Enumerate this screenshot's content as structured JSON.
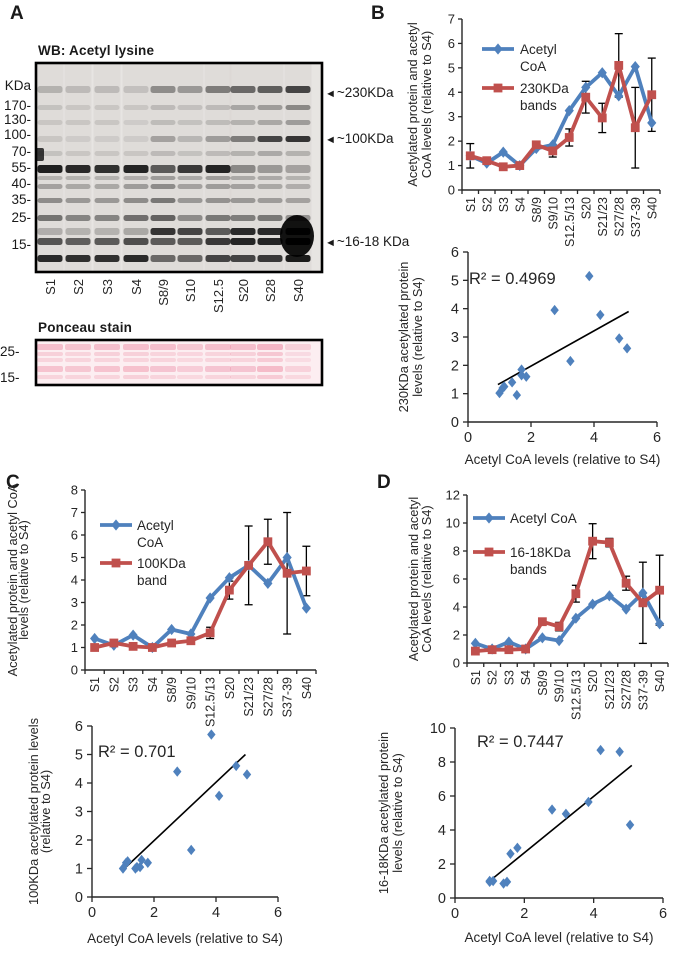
{
  "figure": {
    "panel_labels": {
      "a": "A",
      "b": "B",
      "c": "C",
      "d": "D"
    }
  },
  "colors": {
    "acetyl_coa_blue": "#4F81BD",
    "band_red": "#C0504D",
    "axis_gray": "#262626",
    "error_black": "#000000",
    "trend_black": "#000000",
    "blot_band_black": "#0a0a0a",
    "blot_bg_gray": "#e7e5e2",
    "ponceau_pink": "#EF97AD",
    "ponceau_bg": "#FCEEF1"
  },
  "panel_a": {
    "wb_title": "WB: Acetyl lysine",
    "ladder": [
      "KDa",
      "170-",
      "130-",
      "100-",
      "70-",
      "55-",
      "40-",
      "35-",
      "25-",
      "15-"
    ],
    "lanes": [
      "S1",
      "S2",
      "S3",
      "S4",
      "S8/9",
      "S10",
      "S12.5",
      "S20",
      "S28",
      "S40"
    ],
    "annotations": [
      "~230KDa",
      "~100KDa",
      "~16-18 KDa"
    ],
    "ponceau_title": "Ponceau stain",
    "ponceau_markers": [
      "25-",
      "15-"
    ],
    "blot_bands": [
      {
        "kda": "230",
        "y": 24,
        "h": 7,
        "intensities": [
          0.2,
          0.16,
          0.16,
          0.13,
          0.38,
          0.32,
          0.46,
          0.55,
          0.6,
          0.72
        ]
      },
      {
        "kda": "170",
        "y": 43,
        "h": 5,
        "intensities": [
          0.12,
          0.1,
          0.1,
          0.1,
          0.16,
          0.13,
          0.16,
          0.26,
          0.3,
          0.4
        ]
      },
      {
        "kda": "130",
        "y": 58,
        "h": 5,
        "intensities": [
          0.1,
          0.1,
          0.1,
          0.08,
          0.15,
          0.12,
          0.15,
          0.2,
          0.25,
          0.3
        ]
      },
      {
        "kda": "100",
        "y": 74,
        "h": 6,
        "intensities": [
          0.1,
          0.08,
          0.08,
          0.08,
          0.28,
          0.18,
          0.3,
          0.46,
          0.72,
          0.8
        ]
      },
      {
        "kda": "70",
        "y": 89,
        "h": 5,
        "intensities": [
          0.12,
          0.1,
          0.1,
          0.1,
          0.16,
          0.12,
          0.16,
          0.2,
          0.24,
          0.2
        ]
      },
      {
        "kda": "55",
        "y": 103,
        "h": 8,
        "intensities": [
          0.9,
          0.86,
          0.82,
          0.88,
          0.62,
          0.78,
          0.88,
          0.4,
          0.32,
          0.28
        ]
      },
      {
        "kda": "48",
        "y": 114,
        "h": 4,
        "intensities": [
          0.2,
          0.2,
          0.2,
          0.22,
          0.3,
          0.24,
          0.3,
          0.24,
          0.24,
          0.2
        ]
      },
      {
        "kda": "40",
        "y": 122,
        "h": 5,
        "intensities": [
          0.28,
          0.25,
          0.25,
          0.3,
          0.38,
          0.28,
          0.3,
          0.28,
          0.25,
          0.22
        ]
      },
      {
        "kda": "35",
        "y": 136,
        "h": 5,
        "intensities": [
          0.38,
          0.32,
          0.32,
          0.38,
          0.48,
          0.32,
          0.35,
          0.32,
          0.3,
          0.28
        ]
      },
      {
        "kda": "25",
        "y": 153,
        "h": 6,
        "intensities": [
          0.5,
          0.42,
          0.42,
          0.52,
          0.58,
          0.38,
          0.48,
          0.45,
          0.48,
          0.35
        ]
      },
      {
        "kda": "18",
        "y": 166,
        "h": 7,
        "intensities": [
          0.22,
          0.2,
          0.2,
          0.25,
          0.8,
          0.72,
          0.62,
          0.85,
          0.85,
          0.95
        ]
      },
      {
        "kda": "16",
        "y": 176,
        "h": 7,
        "intensities": [
          0.65,
          0.6,
          0.62,
          0.68,
          0.62,
          0.62,
          0.78,
          0.88,
          0.88,
          1.0
        ]
      },
      {
        "kda": "13",
        "y": 193,
        "h": 7,
        "intensities": [
          0.85,
          0.82,
          0.82,
          0.85,
          0.55,
          0.55,
          0.72,
          0.72,
          0.78,
          0.92
        ]
      }
    ],
    "ponceau_bands": [
      {
        "y": 5,
        "h": 6,
        "intensities": [
          0.55,
          0.5,
          0.55,
          0.55,
          0.55,
          0.45,
          0.55,
          0.55,
          0.65,
          0.35
        ]
      },
      {
        "y": 13,
        "h": 4,
        "intensities": [
          0.35,
          0.3,
          0.35,
          0.35,
          0.3,
          0.28,
          0.3,
          0.35,
          0.45,
          0.22
        ]
      },
      {
        "y": 19,
        "h": 4,
        "intensities": [
          0.3,
          0.3,
          0.3,
          0.3,
          0.3,
          0.25,
          0.3,
          0.3,
          0.4,
          0.2
        ]
      },
      {
        "y": 27,
        "h": 6,
        "intensities": [
          0.5,
          0.45,
          0.5,
          0.52,
          0.48,
          0.38,
          0.48,
          0.48,
          0.58,
          0.32
        ]
      },
      {
        "y": 36,
        "h": 4,
        "intensities": [
          0.3,
          0.3,
          0.3,
          0.35,
          0.3,
          0.25,
          0.3,
          0.3,
          0.4,
          0.25
        ]
      }
    ]
  },
  "chart_data": [
    {
      "id": "panel_b_line",
      "type": "line",
      "categories": [
        "S1",
        "S2",
        "S3",
        "S4",
        "S8/9",
        "S9/10",
        "S12.5/13",
        "S20",
        "S21/23",
        "S27/28",
        "S37-39",
        "S40"
      ],
      "ylabel_lines": [
        "Acetylated protein and acetyl",
        "CoA levels (relative to S4)"
      ],
      "ylim": [
        0,
        7
      ],
      "ytick_step": 1,
      "grid": false,
      "legend_position": "top-left-inside",
      "series": [
        {
          "name": "Acetyl CoA",
          "name_lines": [
            "Acetyl",
            "CoA"
          ],
          "color_key": "acetyl_coa_blue",
          "marker": "diamond",
          "values": [
            1.4,
            1.1,
            1.55,
            1.0,
            1.7,
            1.85,
            3.25,
            4.2,
            4.8,
            3.85,
            5.05,
            2.75
          ]
        },
        {
          "name": "230KDa bands",
          "name_lines": [
            "230KDa",
            "bands"
          ],
          "color_key": "band_red",
          "marker": "square",
          "values": [
            1.4,
            1.2,
            0.95,
            1.0,
            1.85,
            1.6,
            2.15,
            3.8,
            2.95,
            5.1,
            2.55,
            3.9
          ],
          "errors": [
            0.5,
            0,
            0,
            0,
            0,
            0.25,
            0.35,
            0.65,
            0.6,
            1.3,
            1.65,
            1.5
          ]
        }
      ]
    },
    {
      "id": "panel_b_scatter",
      "type": "scatter",
      "r2_label": "R² = 0.4969",
      "xlabel": "Acetyl CoA levels (relative to S4)",
      "ylabel_lines": [
        "230KDa acetylated  protein",
        "levels (relative to S4)"
      ],
      "xlim": [
        0,
        6
      ],
      "ylim": [
        0,
        6
      ],
      "xticks": [
        0,
        2,
        4,
        6
      ],
      "yticks": [
        0,
        1,
        2,
        3,
        4,
        5,
        6
      ],
      "points": [
        [
          1.4,
          1.4
        ],
        [
          1.1,
          1.2
        ],
        [
          1.15,
          1.25
        ],
        [
          1.55,
          0.95
        ],
        [
          1.0,
          1.02
        ],
        [
          1.7,
          1.85
        ],
        [
          1.85,
          1.6
        ],
        [
          1.7,
          1.65
        ],
        [
          3.25,
          2.15
        ],
        [
          4.2,
          3.78
        ],
        [
          4.8,
          2.95
        ],
        [
          3.85,
          5.15
        ],
        [
          5.05,
          2.6
        ],
        [
          2.75,
          3.95
        ]
      ],
      "trend": [
        [
          0.95,
          1.32
        ],
        [
          5.1,
          3.9
        ]
      ]
    },
    {
      "id": "panel_c_line",
      "type": "line",
      "categories": [
        "S1",
        "S2",
        "S3",
        "S4",
        "S8/9",
        "S9/10",
        "S12.5/13",
        "S20",
        "S21/23",
        "S27/28",
        "S37-39",
        "S40"
      ],
      "ylabel_lines": [
        "Acetylated protein and acetyl CoA",
        "levels (relative to S4)"
      ],
      "ylim": [
        0,
        8
      ],
      "ytick_step": 1,
      "grid": false,
      "legend_position": "top-left-inside",
      "series": [
        {
          "name": "Acetyl CoA",
          "name_lines": [
            "Acetyl",
            "CoA"
          ],
          "color_key": "acetyl_coa_blue",
          "marker": "diamond",
          "values": [
            1.4,
            1.1,
            1.55,
            1.0,
            1.8,
            1.6,
            3.2,
            4.1,
            4.65,
            3.85,
            5.0,
            2.75
          ]
        },
        {
          "name": "100KDa band",
          "name_lines": [
            "100KDa",
            "band"
          ],
          "color_key": "band_red",
          "marker": "square",
          "values": [
            1.0,
            1.2,
            1.05,
            1.0,
            1.2,
            1.3,
            1.65,
            3.55,
            4.65,
            5.7,
            4.3,
            4.4
          ],
          "errors": [
            0,
            0,
            0,
            0,
            0,
            0,
            0.25,
            0.4,
            1.75,
            1.0,
            2.7,
            1.1
          ]
        }
      ]
    },
    {
      "id": "panel_c_scatter",
      "type": "scatter",
      "r2_label": "R² = 0.701",
      "xlabel": "Acetyl CoA levels (relative to S4)",
      "ylabel_lines": [
        "100KDa acetylated protein levels",
        "(relative to S4)"
      ],
      "xlim": [
        0,
        6
      ],
      "ylim": [
        0,
        6
      ],
      "xticks": [
        0,
        2,
        4,
        6
      ],
      "yticks": [
        0,
        1,
        2,
        3,
        4,
        5,
        6
      ],
      "points": [
        [
          1.4,
          1.0
        ],
        [
          1.1,
          1.2
        ],
        [
          1.15,
          1.25
        ],
        [
          1.55,
          1.05
        ],
        [
          1.0,
          1.0
        ],
        [
          1.8,
          1.2
        ],
        [
          1.6,
          1.3
        ],
        [
          1.45,
          1.05
        ],
        [
          3.2,
          1.65
        ],
        [
          4.1,
          3.55
        ],
        [
          4.65,
          4.6
        ],
        [
          3.85,
          5.7
        ],
        [
          5.0,
          4.3
        ],
        [
          2.75,
          4.4
        ]
      ],
      "trend": [
        [
          1.0,
          0.95
        ],
        [
          4.95,
          5.0
        ]
      ]
    },
    {
      "id": "panel_d_line",
      "type": "line",
      "categories": [
        "S1",
        "S2",
        "S3",
        "S4",
        "S8/9",
        "S9/10",
        "S12.5/13",
        "S20",
        "S21/23",
        "S27/28",
        "S37-39",
        "S40"
      ],
      "ylabel_lines": [
        "Acetylated protein and acetyl",
        "CoA levels (relative to S4)"
      ],
      "ylim": [
        0,
        12
      ],
      "ytick_step": 2,
      "grid": false,
      "legend_position": "top-left-inside",
      "series": [
        {
          "name": "Acetyl CoA",
          "name_lines": [
            "Acetyl CoA"
          ],
          "color_key": "acetyl_coa_blue",
          "marker": "diamond",
          "values": [
            1.4,
            1.0,
            1.5,
            1.0,
            1.8,
            1.6,
            3.2,
            4.2,
            4.8,
            3.85,
            5.0,
            2.8
          ]
        },
        {
          "name": "16-18KDa bands",
          "name_lines": [
            "16-18KDa",
            "bands"
          ],
          "color_key": "band_red",
          "marker": "square",
          "values": [
            0.85,
            0.95,
            0.95,
            1.0,
            2.95,
            2.6,
            4.95,
            8.7,
            8.6,
            5.7,
            4.3,
            5.2
          ],
          "errors": [
            0,
            0,
            0,
            0,
            0,
            0.3,
            0.6,
            1.25,
            0.3,
            0.5,
            2.9,
            2.5
          ]
        }
      ]
    },
    {
      "id": "panel_d_scatter",
      "type": "scatter",
      "r2_label": "R² = 0.7447",
      "xlabel": "Acetyl CoA level (relative to S4)",
      "ylabel_lines": [
        "16-18KDa acetylated protein",
        "levels (relative to S4)"
      ],
      "xlim": [
        0,
        6
      ],
      "ylim": [
        0,
        10
      ],
      "xticks": [
        0,
        2,
        4,
        6
      ],
      "yticks": [
        0,
        2,
        4,
        6,
        8,
        10
      ],
      "points": [
        [
          1.4,
          0.85
        ],
        [
          1.0,
          0.95
        ],
        [
          1.5,
          0.95
        ],
        [
          1.0,
          1.0
        ],
        [
          1.1,
          1.0
        ],
        [
          1.8,
          2.95
        ],
        [
          1.6,
          2.6
        ],
        [
          3.2,
          4.95
        ],
        [
          4.2,
          8.7
        ],
        [
          4.75,
          8.6
        ],
        [
          3.85,
          5.65
        ],
        [
          5.05,
          4.3
        ],
        [
          2.8,
          5.2
        ]
      ],
      "trend": [
        [
          1.0,
          1.0
        ],
        [
          5.1,
          7.8
        ]
      ]
    }
  ]
}
